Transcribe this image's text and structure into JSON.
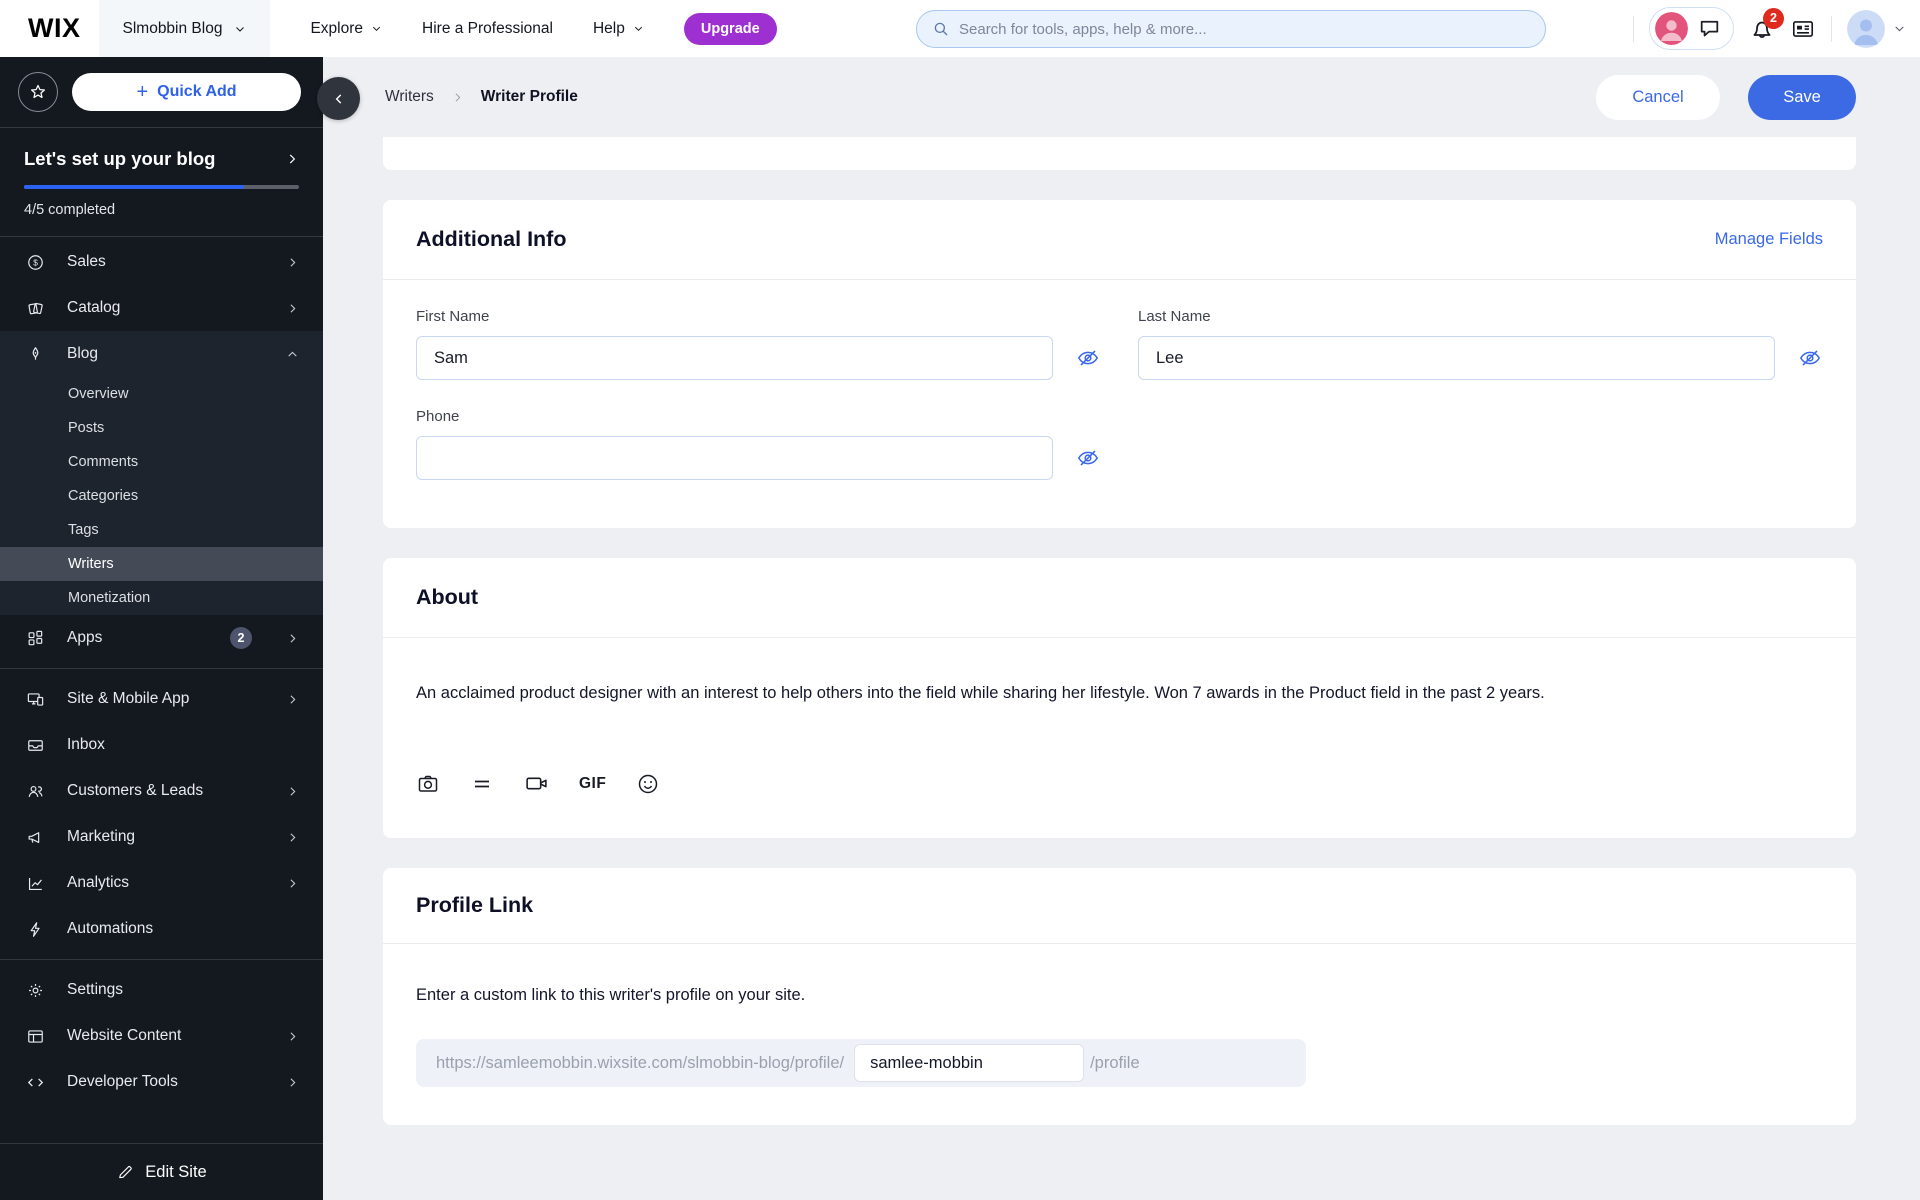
{
  "topbar": {
    "logo": "WIX",
    "site_name": "Slmobbin Blog",
    "nav": [
      {
        "label": "Explore"
      },
      {
        "label": "Hire a Professional"
      },
      {
        "label": "Help"
      }
    ],
    "upgrade_label": "Upgrade",
    "search_placeholder": "Search for tools, apps, help & more...",
    "notification_count": "2"
  },
  "sidebar": {
    "quick_add_label": "Quick Add",
    "plus_glyph": "+",
    "setup": {
      "title": "Let's set up your blog",
      "completed_text": "4/5 completed",
      "progress_pct": 80
    },
    "menu": [
      {
        "label": "Sales"
      },
      {
        "label": "Catalog"
      },
      {
        "label": "Blog"
      }
    ],
    "blog_submenu": [
      {
        "label": "Overview"
      },
      {
        "label": "Posts"
      },
      {
        "label": "Comments"
      },
      {
        "label": "Categories"
      },
      {
        "label": "Tags"
      },
      {
        "label": "Writers"
      },
      {
        "label": "Monetization"
      }
    ],
    "apps": {
      "label": "Apps",
      "badge": "2"
    },
    "menu2": [
      {
        "label": "Site & Mobile App"
      },
      {
        "label": "Inbox"
      },
      {
        "label": "Customers & Leads"
      },
      {
        "label": "Marketing"
      },
      {
        "label": "Analytics"
      },
      {
        "label": "Automations"
      }
    ],
    "menu3": [
      {
        "label": "Settings"
      },
      {
        "label": "Website Content"
      },
      {
        "label": "Developer Tools"
      }
    ],
    "edit_site_label": "Edit Site"
  },
  "header": {
    "breadcrumb_parent": "Writers",
    "breadcrumb_current": "Writer Profile",
    "cancel_label": "Cancel",
    "save_label": "Save"
  },
  "additional_info": {
    "title": "Additional Info",
    "manage_fields_label": "Manage Fields",
    "first_name": {
      "label": "First Name",
      "value": "Sam"
    },
    "last_name": {
      "label": "Last Name",
      "value": "Lee"
    },
    "phone": {
      "label": "Phone",
      "value": ""
    }
  },
  "about": {
    "title": "About",
    "text": "An acclaimed product designer with an interest to help others into the field while sharing her lifestyle. Won 7 awards in the Product field in the past 2 years.",
    "gif_label": "GIF"
  },
  "profile_link": {
    "title": "Profile Link",
    "description": "Enter a custom link to this writer's profile on your site.",
    "base_url": "https://samleemobbin.wixsite.com/slmobbin-blog/profile/",
    "slug": "samlee-mobbin",
    "suffix": "/profile"
  },
  "colors": {
    "accent_blue": "#3b6ae4",
    "upgrade_purple": "#9e30d1",
    "badge_red": "#e02a1e",
    "sidebar_bg": "#141920"
  }
}
